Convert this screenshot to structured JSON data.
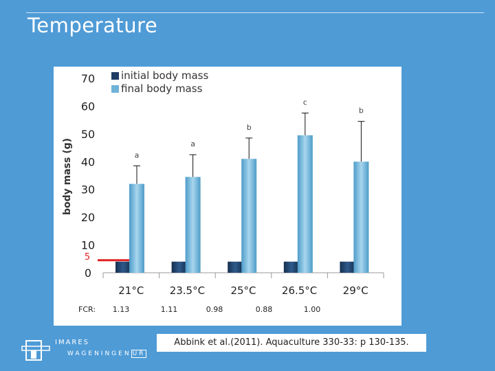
{
  "slide": {
    "title": "Temperature",
    "citation": "Abbink et al.(2011). Aquaculture 330-33: p 130-135."
  },
  "logo": {
    "org": "IMARES",
    "university": "WAGENINGEN",
    "university_suffix": "UR"
  },
  "colors": {
    "background": "#4F9BD6",
    "initial_bar": "#1F3D63",
    "final_bar": "#6FB3D8",
    "red_line": "#E02020"
  },
  "chart_data": {
    "type": "bar",
    "title": "",
    "ylabel": "body mass (g)",
    "xlabel": "",
    "ylim": [
      0,
      70
    ],
    "yticks": [
      0,
      10,
      20,
      30,
      40,
      50,
      60,
      70
    ],
    "categories": [
      "21°C",
      "23.5°C",
      "25°C",
      "26.5°C",
      "29°C"
    ],
    "series": [
      {
        "name": "initial body mass",
        "values": [
          4,
          4,
          4,
          4,
          4
        ]
      },
      {
        "name": "final body mass",
        "values": [
          32,
          34.5,
          41,
          49.5,
          40
        ]
      }
    ],
    "error_upper": [
      38.5,
      42.5,
      48.5,
      57.5,
      54.5
    ],
    "significance_letters": [
      "a",
      "a",
      "b",
      "c",
      "b"
    ],
    "reference_line": {
      "label": "5",
      "value": 4.5
    },
    "fcr_label": "FCR:",
    "fcr_values": [
      "1.13",
      "1.11",
      "0.98",
      "0.88",
      "1.00"
    ]
  }
}
